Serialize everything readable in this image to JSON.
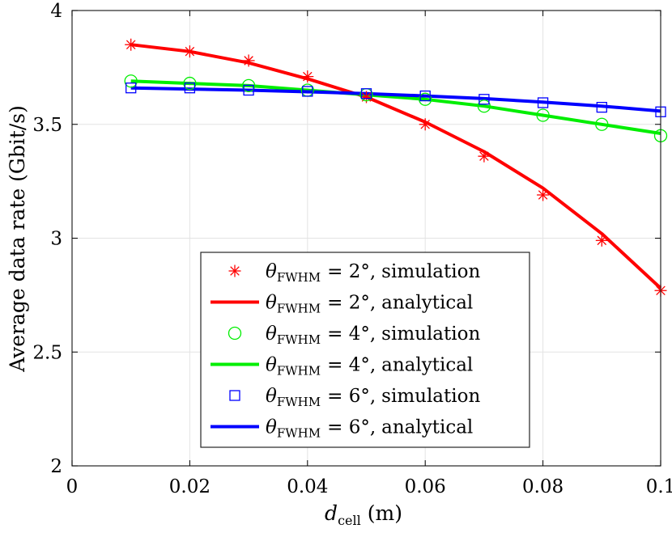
{
  "chart_data": {
    "type": "line",
    "title": "",
    "xlabel": "d",
    "xlabel_sub": "cell",
    "xlabel_unit": "(m)",
    "ylabel": "Average data rate (Gbit/s)",
    "xlim": [
      0,
      0.1
    ],
    "ylim": [
      2,
      4
    ],
    "xticks": [
      0,
      0.02,
      0.04,
      0.06,
      0.08,
      0.1
    ],
    "xtick_labels": [
      "0",
      "0.02",
      "0.04",
      "0.06",
      "0.08",
      "0.1"
    ],
    "yticks": [
      2,
      2.5,
      3,
      3.5,
      4
    ],
    "ytick_labels": [
      "2",
      "2.5",
      "3",
      "3.5",
      "4"
    ],
    "grid": true,
    "legend_position": "bottom-center",
    "x": [
      0.01,
      0.02,
      0.03,
      0.04,
      0.05,
      0.06,
      0.07,
      0.08,
      0.09,
      0.1
    ],
    "series": [
      {
        "name": "θFWHM = 2°, simulation",
        "param_symbol": "θ",
        "param_sub": "FWHM",
        "param_value": "= 2°,",
        "kind": "simulation",
        "marker": "asterisk",
        "color": "#ff0000",
        "values": [
          3.85,
          3.82,
          3.78,
          3.71,
          3.62,
          3.5,
          3.36,
          3.19,
          2.99,
          2.77
        ]
      },
      {
        "name": "θFWHM = 2°, analytical",
        "param_symbol": "θ",
        "param_sub": "FWHM",
        "param_value": "= 2°,",
        "kind": "analytical",
        "marker": "line",
        "color": "#ff0000",
        "values": [
          3.85,
          3.82,
          3.77,
          3.7,
          3.62,
          3.51,
          3.38,
          3.22,
          3.02,
          2.78
        ]
      },
      {
        "name": "θFWHM = 4°, simulation",
        "param_symbol": "θ",
        "param_sub": "FWHM",
        "param_value": "= 4°,",
        "kind": "simulation",
        "marker": "circle",
        "color": "#00ee00",
        "values": [
          3.69,
          3.68,
          3.67,
          3.65,
          3.63,
          3.61,
          3.58,
          3.54,
          3.5,
          3.45
        ]
      },
      {
        "name": "θFWHM = 4°, analytical",
        "param_symbol": "θ",
        "param_sub": "FWHM",
        "param_value": "= 4°,",
        "kind": "analytical",
        "marker": "line",
        "color": "#00ee00",
        "values": [
          3.69,
          3.68,
          3.67,
          3.65,
          3.63,
          3.61,
          3.58,
          3.54,
          3.5,
          3.46
        ]
      },
      {
        "name": "θFWHM = 6°, simulation",
        "param_symbol": "θ",
        "param_sub": "FWHM",
        "param_value": "= 6°,",
        "kind": "simulation",
        "marker": "square",
        "color": "#0000ff",
        "values": [
          3.66,
          3.66,
          3.65,
          3.645,
          3.635,
          3.625,
          3.61,
          3.595,
          3.575,
          3.555
        ]
      },
      {
        "name": "θFWHM = 6°, analytical",
        "param_symbol": "θ",
        "param_sub": "FWHM",
        "param_value": "= 6°,",
        "kind": "analytical",
        "marker": "line",
        "color": "#0000ff",
        "values": [
          3.66,
          3.655,
          3.65,
          3.643,
          3.635,
          3.625,
          3.613,
          3.598,
          3.58,
          3.558
        ]
      }
    ]
  }
}
